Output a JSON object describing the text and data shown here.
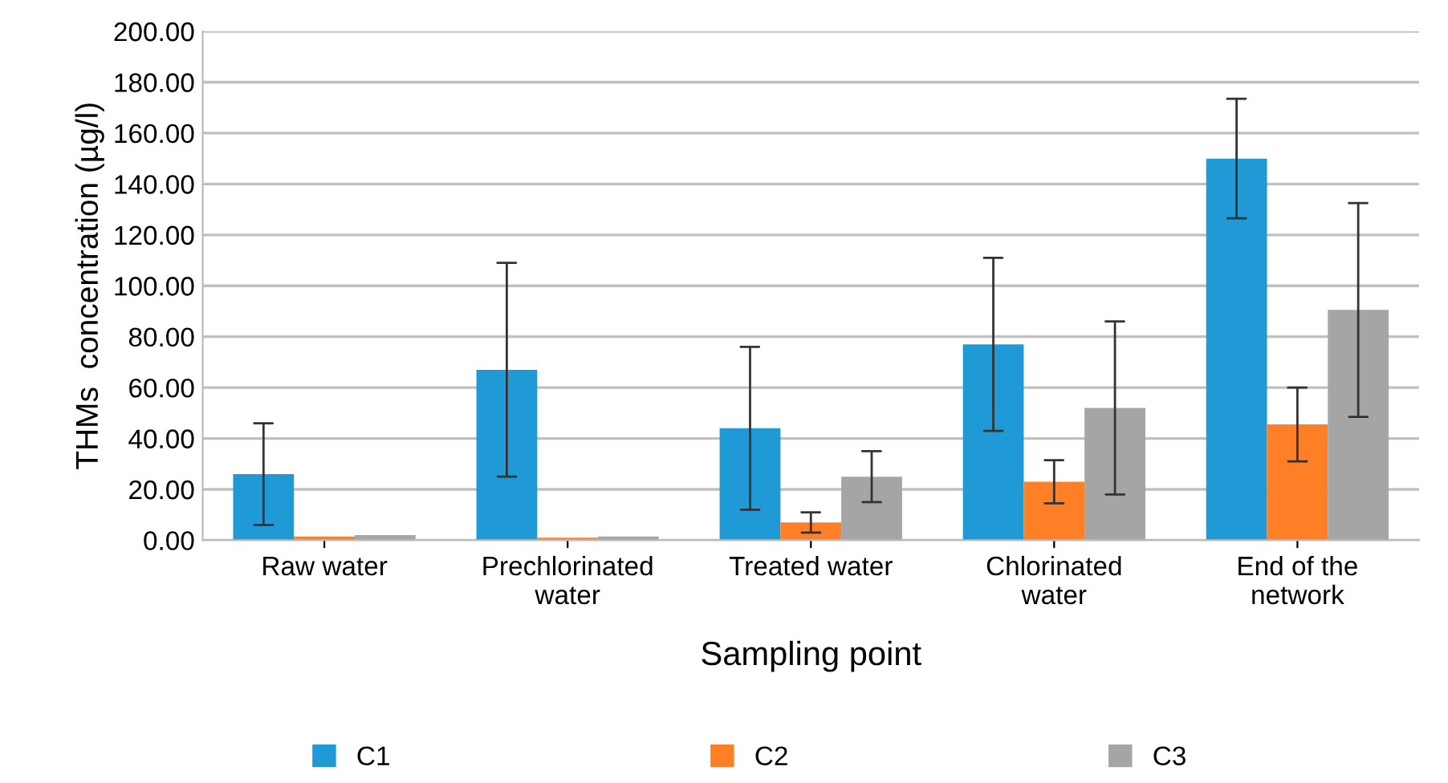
{
  "chart_data": {
    "type": "bar",
    "xlabel": "Sampling point",
    "ylabel": "THMs  concentration (µg/l)",
    "categories": [
      "Raw water",
      "Prechlorinated\nwater",
      "Treated water",
      "Chlorinated\nwater",
      "End of the\nnetwork"
    ],
    "series": [
      {
        "name": "C1",
        "color": "#1f9ad6",
        "values": [
          26,
          67,
          44,
          77,
          150
        ],
        "errors": [
          20,
          42,
          32,
          34,
          23.5
        ]
      },
      {
        "name": "C2",
        "color": "#ff7f27",
        "values": [
          1.5,
          1,
          7,
          23,
          45.5
        ],
        "errors": [
          null,
          null,
          4,
          8.5,
          14.5
        ]
      },
      {
        "name": "C3",
        "color": "#a5a5a5",
        "values": [
          2,
          1.5,
          25,
          52,
          90.5
        ],
        "errors": [
          null,
          null,
          10,
          34,
          42
        ]
      }
    ],
    "ylim": [
      0,
      200
    ],
    "yticks": [
      {
        "value": 0,
        "label": "0.00"
      },
      {
        "value": 20,
        "label": "20.00"
      },
      {
        "value": 40,
        "label": "40.00"
      },
      {
        "value": 60,
        "label": "60.00"
      },
      {
        "value": 80,
        "label": "80.00"
      },
      {
        "value": 100,
        "label": "100.00"
      },
      {
        "value": 120,
        "label": "120.00"
      },
      {
        "value": 140,
        "label": "140.00"
      },
      {
        "value": 160,
        "label": "160.00"
      },
      {
        "value": 180,
        "label": "180.00"
      },
      {
        "value": 200,
        "label": "200.00"
      }
    ],
    "grid": "y",
    "legend": "bottom"
  }
}
